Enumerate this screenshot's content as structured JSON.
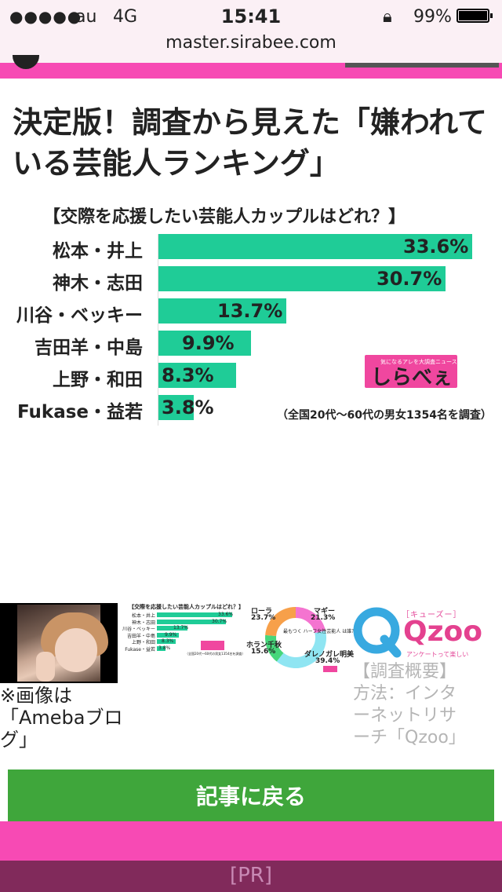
{
  "status_bar": {
    "signal": "●●●●●",
    "carrier": "au",
    "network": "4G",
    "time": "15:41",
    "lock_glyph": "🔒",
    "battery": "99%"
  },
  "browser": {
    "url": "master.sirabee.com"
  },
  "article": {
    "title": "決定版！調査から見えた「嫌われている芸能人ランキング」"
  },
  "chart_data": {
    "type": "bar",
    "title": "【交際を応援したい芸能人カップルはどれ？】",
    "categories": [
      "松本・井上",
      "神木・志田",
      "川谷・ベッキー",
      "吉田羊・中島",
      "上野・和田",
      "Fukase・益若"
    ],
    "values": [
      33.6,
      30.7,
      13.7,
      9.9,
      8.3,
      3.8
    ],
    "value_labels": [
      "33.6%",
      "30.7%",
      "13.7%",
      "9.9%",
      "8.3%",
      "3.8%"
    ],
    "orientation": "horizontal",
    "xlim": [
      0,
      35
    ],
    "grid": false,
    "note": "（全国20代～60代の男女1354名を調査）",
    "bar_color": "#1fcc97"
  },
  "brand": {
    "name": "しらべぇ",
    "tagline": "気になるアレを大調査ニュース！"
  },
  "thumbnails": {
    "photo_caption": "※画像は「Amebaブログ」",
    "donut": {
      "labels": [
        {
          "name": "ローラ",
          "value": "23.7%"
        },
        {
          "name": "マギー",
          "value": "21.3%"
        },
        {
          "name": "ホラン千秋",
          "value": "15.6%"
        },
        {
          "name": "ダレノガレ明美",
          "value": "39.4%"
        }
      ],
      "question": "最もつく ハーフ女性芸能人 は誰？",
      "colors": [
        "#f7a04a",
        "#f474d0",
        "#46d67a",
        "#8fe5f2"
      ]
    },
    "qzoo": {
      "katakana": "［キューズー］",
      "name": "Qzoo",
      "tagline": "アンケートって楽しい",
      "caption": "【調査概要】方法：インターネットリサーチ「Qzoo」"
    }
  },
  "buttons": {
    "back": "記事に戻る"
  },
  "footer": {
    "pr": "[PR]"
  },
  "colors": {
    "pink": "#f74ab4",
    "green": "#3fa63b",
    "pr_bg": "#812a5b"
  }
}
